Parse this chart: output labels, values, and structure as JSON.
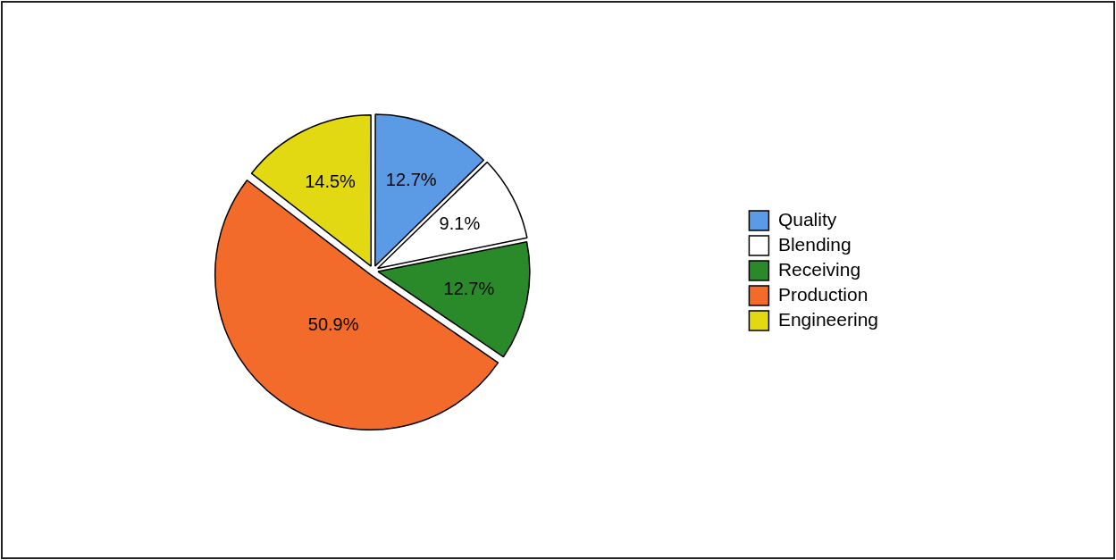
{
  "chart_data": {
    "type": "pie",
    "categories": [
      "Quality",
      "Blending",
      "Receiving",
      "Production",
      "Engineering"
    ],
    "values": [
      12.7,
      9.1,
      12.7,
      50.9,
      14.5
    ],
    "colors": [
      "#5b9be6",
      "#ffffff",
      "#2a8a2a",
      "#f26b2b",
      "#e3d912"
    ],
    "value_labels": [
      "12.7%",
      "9.1%",
      "12.7%",
      "50.9%",
      "14.5%"
    ],
    "legend": "right"
  }
}
